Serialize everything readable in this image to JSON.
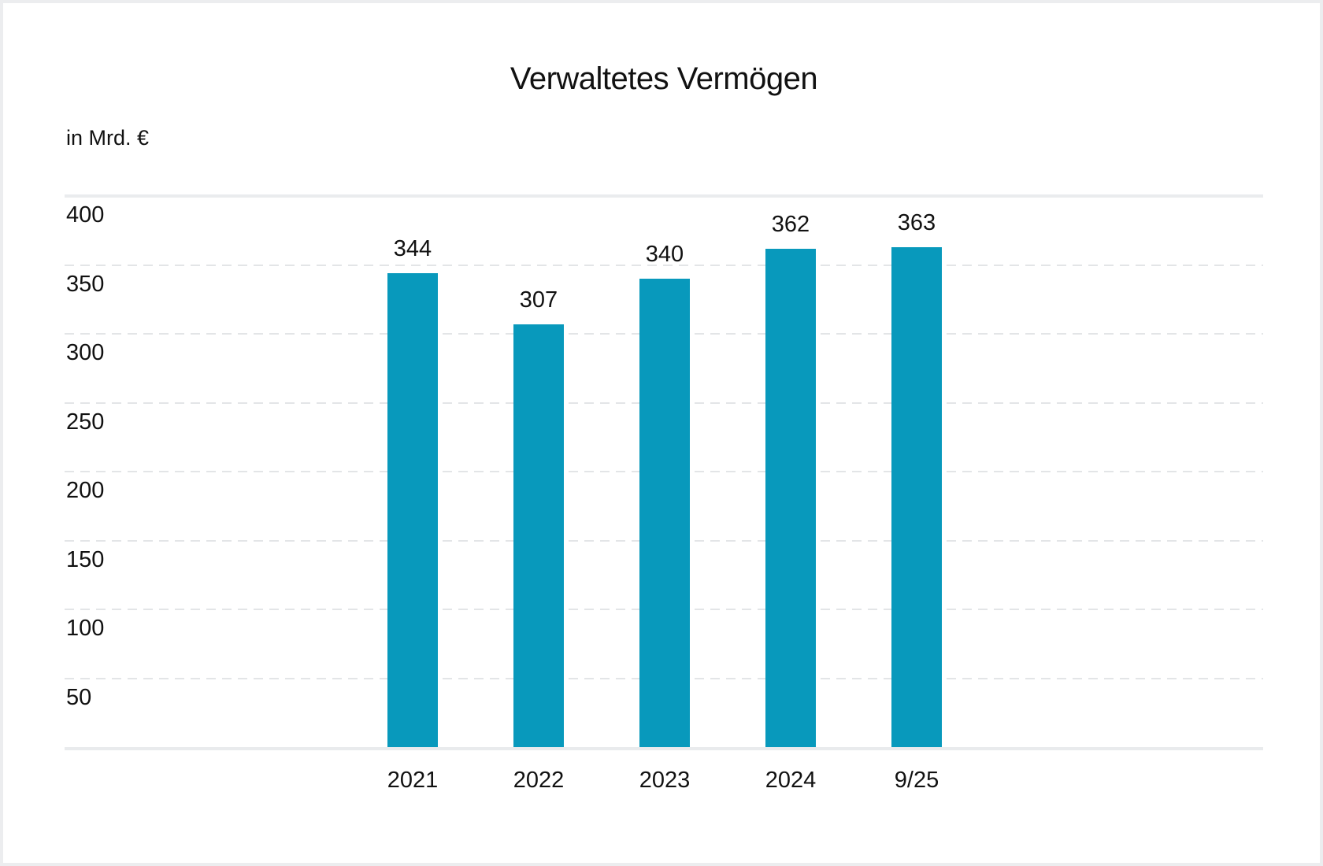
{
  "page": {
    "background_color": "#ffffff",
    "frame_color": "#ecedef",
    "text_color": "#111111"
  },
  "chart_data": {
    "type": "bar",
    "title": "Verwaltetes Vermögen",
    "unit_label": "in Mrd. €",
    "categories": [
      "2021",
      "2022",
      "2023",
      "2024",
      "9/25"
    ],
    "values": [
      344,
      307,
      340,
      362,
      363
    ],
    "yticks": [
      400,
      350,
      300,
      250,
      200,
      150,
      100,
      50
    ],
    "ylim": [
      0,
      400
    ],
    "bar_color": "#0899bc",
    "grid": "horizontal dashed, solid line at 400 and at baseline",
    "legend": "none",
    "value_labels": "above bars",
    "ytick_position": "left-aligned below each gridline"
  }
}
